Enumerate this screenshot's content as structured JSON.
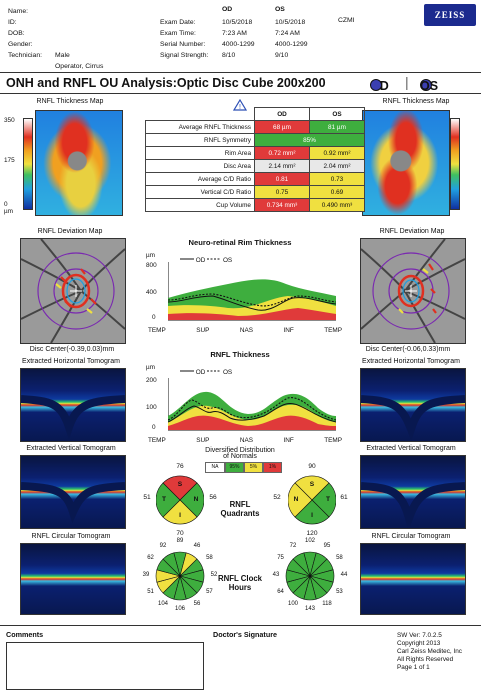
{
  "header": {
    "labels": [
      "Name:",
      "ID:",
      "DOB:",
      "Gender:",
      "Technician:"
    ],
    "values": [
      "",
      "",
      "",
      "Male",
      "Operator, Cirrus"
    ],
    "exam_labels": [
      "",
      "Exam Date:",
      "Exam Time:",
      "Serial Number:",
      "Signal Strength:"
    ],
    "od_values": [
      "OD",
      "10/5/2018",
      "7:23 AM",
      "4000-1299",
      "8/10"
    ],
    "os_values": [
      "OS",
      "10/5/2018",
      "7:24 AM",
      "4000-1299",
      "9/10"
    ],
    "czmi": "CZMI",
    "logo": "ZEISS"
  },
  "title": {
    "text": "ONH and RNFL OU Analysis:Optic Disc Cube 200x200",
    "od": "OD",
    "os": "OS"
  },
  "thickness_map": {
    "title": "RNFL Thickness Map",
    "scale": [
      "350",
      "175",
      "0 µm"
    ]
  },
  "table": {
    "col_od": "OD",
    "col_os": "OS",
    "rows": [
      {
        "label": "Average RNFL Thickness",
        "od": "68 µm",
        "os": "81 µm",
        "od_color": "red",
        "os_color": "grn"
      },
      {
        "label": "RNFL Symmetry",
        "span": "85%",
        "color": "grn"
      },
      {
        "label": "Rim Area",
        "od": "0.72 mm²",
        "os": "0.92 mm²",
        "od_color": "red",
        "os_color": "yel"
      },
      {
        "label": "Disc Area",
        "od": "2.14 mm²",
        "os": "2.04 mm²",
        "od_color": "grey",
        "os_color": "grey"
      },
      {
        "label": "Average C/D Ratio",
        "od": "0.81",
        "os": "0.73",
        "od_color": "red",
        "os_color": "yel"
      },
      {
        "label": "Vertical C/D Ratio",
        "od": "0.75",
        "os": "0.69",
        "od_color": "yel",
        "os_color": "yel"
      },
      {
        "label": "Cup Volume",
        "od": "0.734 mm³",
        "os": "0.490 mm³",
        "od_color": "red",
        "os_color": "yel"
      }
    ]
  },
  "deviation": {
    "title": "RNFL Deviation Map",
    "od_center": "Disc Center(-0.39,0.03)mm",
    "os_center": "Disc Center(-0.06,0.33)mm"
  },
  "rim_chart": {
    "title": "Neuro-retinal Rim Thickness",
    "unit": "µm",
    "yticks": [
      "800",
      "400",
      "0"
    ],
    "xticks": [
      "TEMP",
      "SUP",
      "NAS",
      "INF",
      "TEMP"
    ],
    "legend_od": "OD",
    "legend_os": "OS"
  },
  "rnfl_chart": {
    "title": "RNFL Thickness",
    "unit": "µm",
    "yticks": [
      "200",
      "100",
      "0"
    ],
    "xticks": [
      "TEMP",
      "SUP",
      "NAS",
      "INF",
      "TEMP"
    ],
    "legend_od": "OD",
    "legend_os": "OS"
  },
  "tomograms": {
    "horizontal": "Extracted Horizontal Tomogram",
    "vertical": "Extracted Vertical Tomogram",
    "circular": "RNFL Circular Tomogram"
  },
  "legend": {
    "title": "Diversified Distribution of Normals",
    "labels": [
      "NA",
      "95%",
      "5%",
      "1%"
    ]
  },
  "quadrants": {
    "label": "RNFL Quadrants",
    "od": {
      "S": "76",
      "N": "56",
      "I": "70",
      "T": "51"
    },
    "os": {
      "S": "90",
      "N": "52",
      "I": "120",
      "T": "61"
    },
    "letters": [
      "S",
      "N",
      "I",
      "T"
    ]
  },
  "clock": {
    "label": "RNFL Clock Hours",
    "od": [
      "89",
      "46",
      "58",
      "52",
      "57",
      "56",
      "106",
      "104",
      "51",
      "39",
      "62",
      "92"
    ],
    "os": [
      "102",
      "95",
      "58",
      "44",
      "53",
      "118",
      "143",
      "100",
      "64",
      "43",
      "75",
      "72"
    ]
  },
  "footer": {
    "comments": "Comments",
    "signature": "Doctor's Signature",
    "version": "SW Ver: 7.0.2.5",
    "copyright": "Copyright 2013",
    "company": "Carl Zeiss Meditec, Inc",
    "rights": "All Rights Reserved",
    "page": "Page 1 of 1"
  }
}
